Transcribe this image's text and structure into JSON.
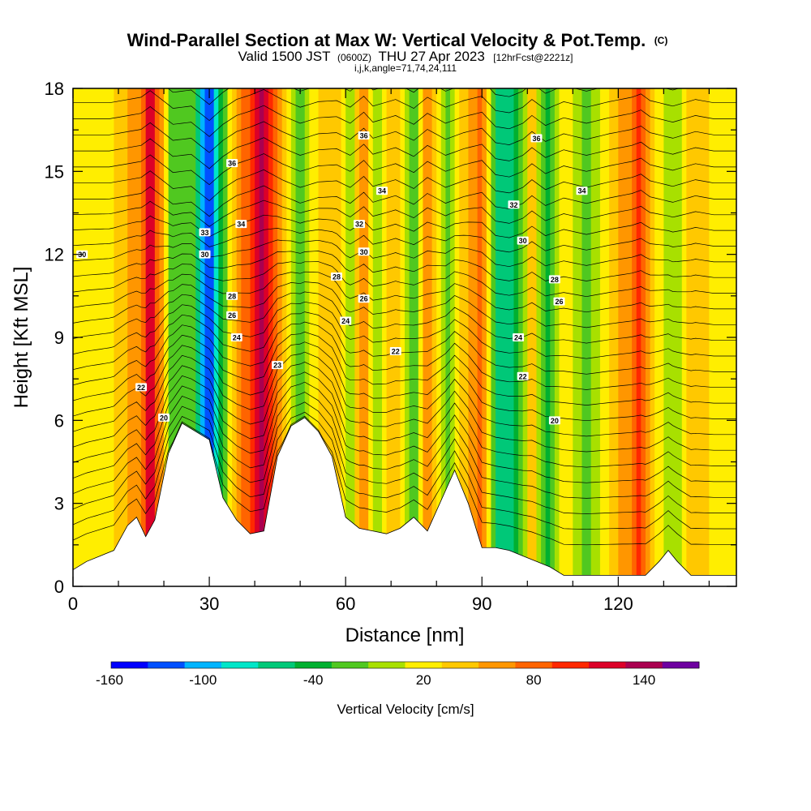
{
  "chart_data": {
    "type": "heatmap",
    "title": "Wind-Parallel Section at Max W: Vertical Velocity & Pot.Temp.",
    "title_mark": "(C)",
    "subtitle": {
      "prefix": "Valid 1500 JST",
      "zulu": "(0600Z)",
      "date": "THU 27 Apr 2023",
      "forecast": "[12hrFcst@2221z]"
    },
    "subtitle2": "i,j,k,angle=71,74,24,111",
    "xlabel": "Distance [nm]",
    "ylabel": "Height [Kft MSL]",
    "xlim": [
      0,
      146
    ],
    "ylim": [
      0,
      18
    ],
    "x_ticks": [
      "0",
      "30",
      "60",
      "90",
      "120"
    ],
    "x_tick_values": [
      0,
      30,
      60,
      90,
      120
    ],
    "y_ticks": [
      "0",
      "3",
      "6",
      "9",
      "12",
      "15",
      "18"
    ],
    "y_tick_values": [
      0,
      3,
      6,
      9,
      12,
      15,
      18
    ],
    "colorbar": {
      "title": "Vertical Velocity [cm/s]",
      "labels": [
        "-160",
        "-100",
        "-40",
        "20",
        "80",
        "140"
      ],
      "label_values": [
        -160,
        -100,
        -40,
        20,
        80,
        140
      ],
      "range": [
        -160,
        160
      ],
      "colors": [
        "#0000ff",
        "#0050ff",
        "#00b4ff",
        "#00e6c8",
        "#00c878",
        "#00b030",
        "#50c820",
        "#a8e000",
        "#ffee00",
        "#ffc800",
        "#ff9600",
        "#ff6400",
        "#ff2800",
        "#dc0028",
        "#aa0050",
        "#6e00a0"
      ]
    },
    "velocity_field": {
      "x": [
        8,
        15,
        17,
        22,
        26,
        30,
        33,
        36,
        39,
        42,
        46,
        50,
        54,
        58,
        61,
        64,
        66,
        71,
        75,
        78,
        82,
        86,
        90,
        93,
        96,
        99,
        101,
        104,
        108,
        113,
        118,
        123,
        125,
        127,
        132,
        137,
        141
      ],
      "w": [
        10,
        60,
        120,
        -40,
        -20,
        -150,
        -40,
        40,
        80,
        130,
        40,
        -30,
        20,
        30,
        -30,
        70,
        -20,
        40,
        -40,
        60,
        -30,
        30,
        70,
        -60,
        -80,
        -30,
        40,
        -50,
        20,
        -30,
        20,
        60,
        90,
        30,
        -20,
        40,
        10
      ]
    },
    "terrain_kft": {
      "x": [
        0,
        3,
        6,
        9,
        12,
        14,
        16,
        18,
        21,
        24,
        27,
        30,
        33,
        36,
        39,
        42,
        45,
        48,
        51,
        54,
        57,
        60,
        63,
        66,
        69,
        72,
        75,
        78,
        81,
        84,
        87,
        90,
        93,
        96,
        99,
        102,
        105,
        108,
        111,
        114,
        117,
        120,
        123,
        126,
        129,
        131,
        133,
        136,
        139,
        142,
        146
      ],
      "h": [
        0.6,
        0.9,
        1.1,
        1.3,
        2.2,
        2.5,
        1.8,
        2.4,
        4.8,
        5.9,
        5.6,
        5.3,
        3.2,
        2.4,
        1.9,
        2.0,
        4.7,
        5.8,
        6.1,
        5.6,
        4.7,
        2.5,
        2.1,
        2.0,
        1.9,
        2.1,
        2.5,
        2.0,
        3.1,
        4.2,
        3.0,
        1.4,
        1.4,
        1.3,
        1.1,
        0.9,
        0.7,
        0.4,
        0.4,
        0.4,
        0.4,
        0.4,
        0.4,
        0.4,
        0.9,
        1.3,
        0.9,
        0.4,
        0.4,
        0.4,
        0.4
      ]
    },
    "theta_contours": {
      "levels_c": [
        20,
        22,
        24,
        26,
        28,
        30,
        32,
        34,
        36
      ],
      "labels": [
        {
          "text": "30",
          "x": 2,
          "y": 12.0
        },
        {
          "text": "36",
          "x": 35,
          "y": 15.3
        },
        {
          "text": "36",
          "x": 64,
          "y": 16.3
        },
        {
          "text": "36",
          "x": 102,
          "y": 16.2
        },
        {
          "text": "34",
          "x": 37,
          "y": 13.1
        },
        {
          "text": "34",
          "x": 68,
          "y": 14.3
        },
        {
          "text": "34",
          "x": 112,
          "y": 14.3
        },
        {
          "text": "33",
          "x": 29,
          "y": 12.8
        },
        {
          "text": "32",
          "x": 63,
          "y": 13.1
        },
        {
          "text": "32",
          "x": 97,
          "y": 13.8
        },
        {
          "text": "30",
          "x": 29,
          "y": 12.0
        },
        {
          "text": "30",
          "x": 64,
          "y": 12.1
        },
        {
          "text": "30",
          "x": 99,
          "y": 12.5
        },
        {
          "text": "28",
          "x": 35,
          "y": 10.5
        },
        {
          "text": "28",
          "x": 58,
          "y": 11.2
        },
        {
          "text": "28",
          "x": 106,
          "y": 11.1
        },
        {
          "text": "26",
          "x": 35,
          "y": 9.8
        },
        {
          "text": "26",
          "x": 64,
          "y": 10.4
        },
        {
          "text": "26",
          "x": 107,
          "y": 10.3
        },
        {
          "text": "24",
          "x": 36,
          "y": 9.0
        },
        {
          "text": "24",
          "x": 60,
          "y": 9.6
        },
        {
          "text": "24",
          "x": 98,
          "y": 9.0
        },
        {
          "text": "23",
          "x": 45,
          "y": 8.0
        },
        {
          "text": "22",
          "x": 71,
          "y": 8.5
        },
        {
          "text": "22",
          "x": 99,
          "y": 7.6
        },
        {
          "text": "22",
          "x": 15,
          "y": 7.2
        },
        {
          "text": "20",
          "x": 20,
          "y": 6.1
        },
        {
          "text": "20",
          "x": 106,
          "y": 6.0
        }
      ]
    }
  }
}
